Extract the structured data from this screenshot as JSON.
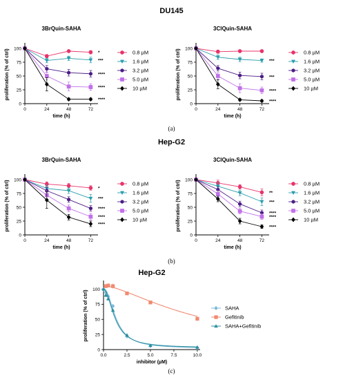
{
  "figure": {
    "section_a": "DU145",
    "section_b": "Hep-G2",
    "sublabel_a": "(a)",
    "sublabel_b": "(b)",
    "sublabel_c": "(c)"
  },
  "chart_data": [
    {
      "id": "a1",
      "type": "line",
      "title": "3BrQuin-SAHA",
      "xlabel": "time (h)",
      "ylabel": "proliferation (% of ctrl)",
      "x": [
        0,
        24,
        48,
        72
      ],
      "xticks": [
        0,
        24,
        48,
        72
      ],
      "yticks": [
        0,
        25,
        50,
        75,
        100
      ],
      "xlim": [
        0,
        80
      ],
      "ylim": [
        0,
        105
      ],
      "legend": "right",
      "series": [
        {
          "name": "0.8 µM",
          "color": "#e8336a",
          "marker": "circle",
          "values": [
            100,
            86,
            95,
            93
          ],
          "err": [
            0,
            3,
            2,
            3
          ],
          "sig": "*"
        },
        {
          "name": "1.6 µM",
          "color": "#2a9dad",
          "marker": "tri_down",
          "values": [
            100,
            78,
            82,
            79
          ],
          "err": [
            0,
            4,
            4,
            5
          ],
          "sig": "***"
        },
        {
          "name": "3.2 µM",
          "color": "#4b1c86",
          "marker": "hexagon",
          "values": [
            100,
            63,
            56,
            54
          ],
          "err": [
            0,
            6,
            6,
            6
          ],
          "sig": "****"
        },
        {
          "name": "5.0 µM",
          "color": "#c070e8",
          "marker": "square",
          "values": [
            100,
            50,
            31,
            30
          ],
          "err": [
            0,
            7,
            8,
            6
          ],
          "sig": "****"
        },
        {
          "name": "10 µM",
          "color": "#000000",
          "marker": "diamond",
          "values": [
            100,
            35,
            8,
            8
          ],
          "err": [
            0,
            12,
            2,
            2
          ],
          "sig": "****"
        }
      ]
    },
    {
      "id": "a2",
      "type": "line",
      "title": "3ClQuin-SAHA",
      "xlabel": "time (h)",
      "ylabel": "proliferation (% of ctrl)",
      "x": [
        0,
        24,
        48,
        72
      ],
      "xticks": [
        0,
        24,
        48,
        72
      ],
      "yticks": [
        0,
        25,
        50,
        75,
        100
      ],
      "xlim": [
        0,
        80
      ],
      "ylim": [
        0,
        105
      ],
      "legend": "right",
      "series": [
        {
          "name": "0.8 µM",
          "color": "#e8336a",
          "marker": "circle",
          "values": [
            100,
            94,
            95,
            95
          ],
          "err": [
            0,
            3,
            2,
            2
          ],
          "sig": ""
        },
        {
          "name": "1.6 µM",
          "color": "#2a9dad",
          "marker": "tri_down",
          "values": [
            100,
            84,
            80,
            78
          ],
          "err": [
            0,
            4,
            4,
            3
          ],
          "sig": "***"
        },
        {
          "name": "3.2 µM",
          "color": "#4b1c86",
          "marker": "hexagon",
          "values": [
            100,
            64,
            51,
            49
          ],
          "err": [
            0,
            5,
            6,
            6
          ],
          "sig": "***"
        },
        {
          "name": "5.0 µM",
          "color": "#c070e8",
          "marker": "square",
          "values": [
            100,
            50,
            28,
            24
          ],
          "err": [
            0,
            6,
            8,
            6
          ],
          "sig": "****"
        },
        {
          "name": "10 µM",
          "color": "#000000",
          "marker": "diamond",
          "values": [
            100,
            35,
            7,
            5
          ],
          "err": [
            0,
            8,
            2,
            2
          ],
          "sig": "****"
        }
      ]
    },
    {
      "id": "b1",
      "type": "line",
      "title": "3BrQuin-SAHA",
      "xlabel": "time (h)",
      "ylabel": "proliferation (% of ctrl)",
      "x": [
        0,
        24,
        48,
        72
      ],
      "xticks": [
        0,
        24,
        48,
        72
      ],
      "yticks": [
        0,
        25,
        50,
        75,
        100
      ],
      "xlim": [
        0,
        80
      ],
      "ylim": [
        0,
        105
      ],
      "legend": "right",
      "series": [
        {
          "name": "0.8 µM",
          "color": "#e8336a",
          "marker": "circle",
          "values": [
            100,
            92,
            89,
            85
          ],
          "err": [
            0,
            4,
            4,
            4
          ],
          "sig": "*"
        },
        {
          "name": "1.6 µM",
          "color": "#2a9dad",
          "marker": "tri_down",
          "values": [
            100,
            84,
            80,
            66
          ],
          "err": [
            0,
            6,
            5,
            7
          ],
          "sig": "***"
        },
        {
          "name": "3.2 µM",
          "color": "#4b1c86",
          "marker": "hexagon",
          "values": [
            100,
            80,
            64,
            48
          ],
          "err": [
            0,
            6,
            5,
            5
          ],
          "sig": "****"
        },
        {
          "name": "5.0 µM",
          "color": "#c070e8",
          "marker": "square",
          "values": [
            100,
            72,
            48,
            33
          ],
          "err": [
            0,
            7,
            6,
            6
          ],
          "sig": "****"
        },
        {
          "name": "10 µM",
          "color": "#000000",
          "marker": "diamond",
          "values": [
            100,
            63,
            32,
            20
          ],
          "err": [
            0,
            15,
            5,
            5
          ],
          "sig": "****"
        }
      ]
    },
    {
      "id": "b2",
      "type": "line",
      "title": "3ClQuin-SAHA",
      "xlabel": "time (h)",
      "ylabel": "proliferation (% of ctrl)",
      "x": [
        0,
        24,
        48,
        72
      ],
      "xticks": [
        0,
        24,
        48,
        72
      ],
      "yticks": [
        0,
        25,
        50,
        75,
        100
      ],
      "xlim": [
        0,
        80
      ],
      "ylim": [
        0,
        105
      ],
      "legend": "right",
      "series": [
        {
          "name": "0.8 µM",
          "color": "#e8336a",
          "marker": "circle",
          "values": [
            100,
            94,
            87,
            77
          ],
          "err": [
            0,
            5,
            4,
            6
          ],
          "sig": "**"
        },
        {
          "name": "1.6 µM",
          "color": "#2a9dad",
          "marker": "tri_down",
          "values": [
            100,
            88,
            76,
            60
          ],
          "err": [
            0,
            6,
            5,
            7
          ],
          "sig": "***"
        },
        {
          "name": "3.2 µM",
          "color": "#4b1c86",
          "marker": "hexagon",
          "values": [
            100,
            82,
            56,
            40
          ],
          "err": [
            0,
            5,
            5,
            5
          ],
          "sig": "****"
        },
        {
          "name": "5.0 µM",
          "color": "#c070e8",
          "marker": "square",
          "values": [
            100,
            74,
            43,
            33
          ],
          "err": [
            0,
            6,
            5,
            5
          ],
          "sig": "****"
        },
        {
          "name": "10 µM",
          "color": "#000000",
          "marker": "diamond",
          "values": [
            100,
            65,
            25,
            15
          ],
          "err": [
            0,
            5,
            5,
            3
          ],
          "sig": "****"
        }
      ]
    },
    {
      "id": "c",
      "type": "scatter",
      "title": "Hep-G2",
      "xlabel": "inhibitor (µM)",
      "ylabel": "proliferation (% of ctrl)",
      "xticks": [
        0.0,
        2.5,
        5.0,
        7.5,
        10.0
      ],
      "xtick_labels": [
        "0.0",
        "2.5",
        "5.0",
        "7.5",
        "10.0"
      ],
      "yticks": [
        0,
        25,
        50,
        75,
        100
      ],
      "xlim": [
        0,
        10.3
      ],
      "ylim": [
        0,
        112
      ],
      "legend": "right",
      "series": [
        {
          "name": "SAHA",
          "color": "#7ab8d8",
          "marker": "diamond",
          "x": [
            0.0,
            0.25,
            0.5,
            1.0,
            2.5,
            5.0,
            10.0
          ],
          "values": [
            100,
            95,
            88,
            72,
            22,
            6,
            3
          ],
          "err": [
            3,
            3,
            3,
            3,
            2,
            1,
            1
          ],
          "fit": {
            "top": 101,
            "bottom": 2,
            "ic50": 1.35,
            "hill": 2.1
          }
        },
        {
          "name": "Gefitinib",
          "color": "#f08a70",
          "marker": "square",
          "x": [
            0.25,
            0.5,
            1.0,
            2.5,
            5.0,
            10.0
          ],
          "values": [
            105,
            106,
            105,
            93,
            78,
            51
          ],
          "err": [
            3,
            3,
            4,
            3,
            3,
            3
          ],
          "fit": {
            "top": 106,
            "bottom": 0,
            "ic50": 10.5,
            "hill": 1.5
          }
        },
        {
          "name": "SAHA+Gefitinib",
          "color": "#2a8fa0",
          "marker": "triangle",
          "x": [
            0.0,
            0.25,
            0.5,
            1.0,
            2.5,
            5.0,
            10.0
          ],
          "values": [
            100,
            90,
            84,
            65,
            24,
            7,
            4
          ],
          "err": [
            3,
            3,
            3,
            3,
            2,
            1,
            1
          ],
          "fit": {
            "top": 100,
            "bottom": 3,
            "ic50": 1.25,
            "hill": 2.0
          }
        }
      ]
    }
  ]
}
